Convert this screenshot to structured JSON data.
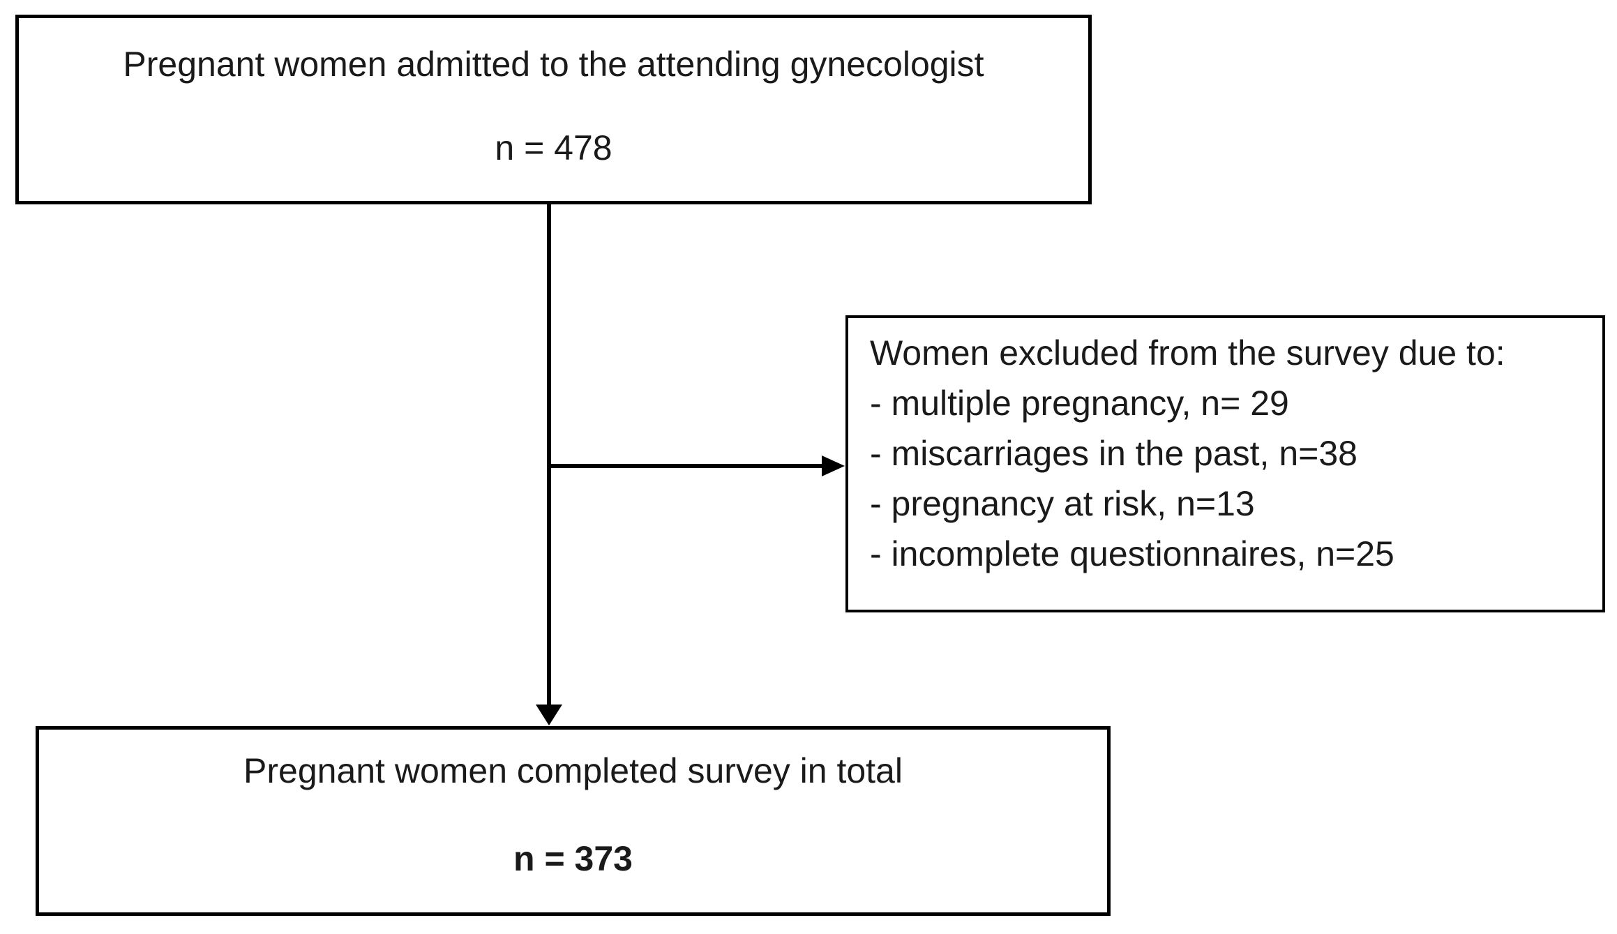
{
  "flowchart": {
    "colors": {
      "border": "#000000",
      "text": "#1a1a1a",
      "background": "#ffffff"
    },
    "top_box": {
      "line1": "Pregnant women admitted to the attending gynecologist",
      "n_label": "n = 478"
    },
    "exclusion_box": {
      "heading": "Women excluded from the survey due to:",
      "items": [
        "- multiple pregnancy, n= 29",
        "- miscarriages in the past, n=38",
        "- pregnancy at risk, n=13",
        "- incomplete questionnaires, n=25"
      ]
    },
    "bottom_box": {
      "line1": "Pregnant women completed survey in total",
      "n_label": "n = 373"
    }
  }
}
